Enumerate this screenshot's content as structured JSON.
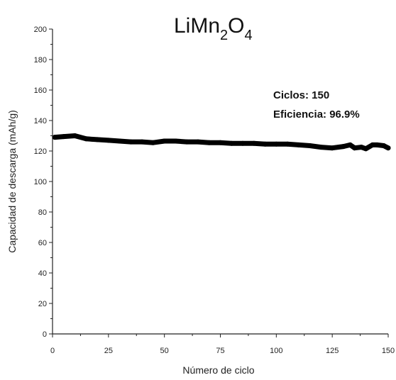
{
  "chart_data": {
    "type": "line",
    "title": {
      "main": "LiMn",
      "sub1": "2",
      "mid": "O",
      "sub2": "4"
    },
    "xlabel": "Número de ciclo",
    "ylabel": "Capacidad de descarga (mAh/g)",
    "xlim": [
      0,
      150
    ],
    "ylim": [
      0,
      200
    ],
    "x_ticks": [
      "0",
      "25",
      "50",
      "75",
      "100",
      "125",
      "150"
    ],
    "y_ticks": [
      "0",
      "20",
      "40",
      "60",
      "80",
      "100",
      "120",
      "140",
      "160",
      "180",
      "200"
    ],
    "grid": false,
    "annotations": {
      "line1": "Ciclos: 150",
      "line2": "Eficiencia: 96.9%"
    },
    "series": [
      {
        "color": "#000000",
        "x": [
          1,
          5,
          10,
          15,
          20,
          25,
          30,
          35,
          40,
          45,
          50,
          55,
          60,
          65,
          70,
          75,
          80,
          85,
          90,
          95,
          100,
          105,
          110,
          115,
          120,
          125,
          130,
          133,
          135,
          138,
          140,
          143,
          145,
          148,
          150
        ],
        "y": [
          129,
          129.5,
          130,
          128,
          127.5,
          127,
          126.5,
          126,
          126,
          125.5,
          126.5,
          126.5,
          126,
          126,
          125.5,
          125.5,
          125,
          125,
          125,
          124.5,
          124.5,
          124.5,
          124,
          123.5,
          122.5,
          122,
          123,
          124,
          122,
          122.5,
          121.5,
          124,
          124,
          123.5,
          122
        ]
      }
    ]
  }
}
